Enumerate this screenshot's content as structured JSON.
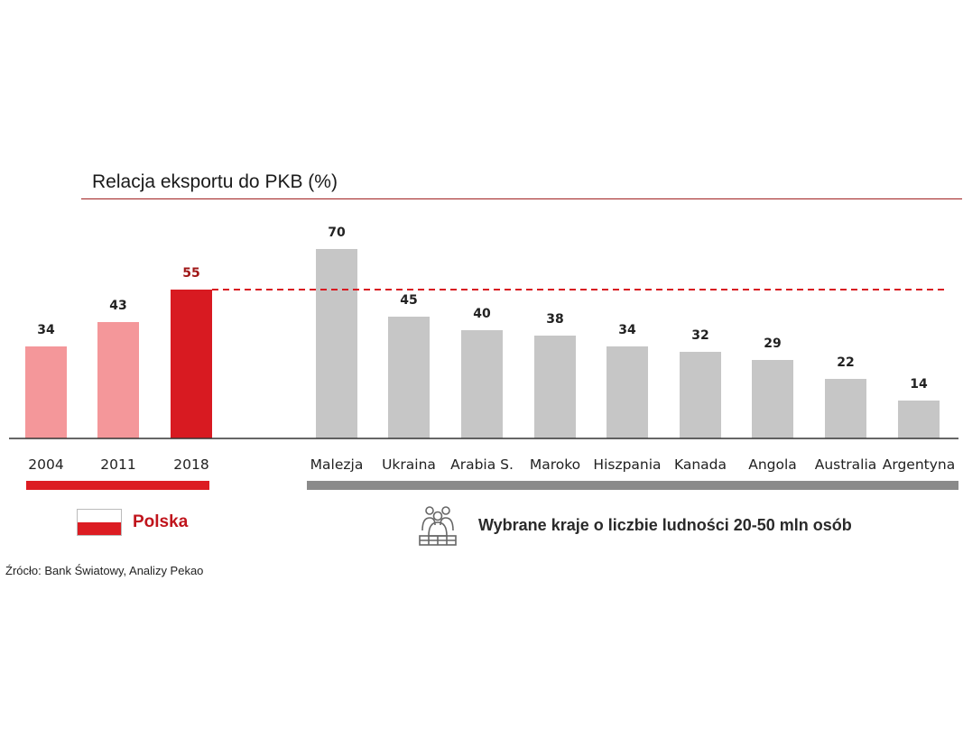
{
  "chart_data": {
    "type": "bar",
    "title": "Relacja eksportu do PKB (%)",
    "groups": [
      {
        "name": "Polska",
        "categories": [
          "2004",
          "2011",
          "2018"
        ],
        "values": [
          34,
          43,
          55
        ],
        "colors": [
          "#f4979a",
          "#f4979a",
          "#d81a21"
        ]
      },
      {
        "name": "Wybrane kraje o liczbie ludności 20-50 mln osób",
        "categories": [
          "Malezja",
          "Ukraina",
          "Arabia S.",
          "Maroko",
          "Hiszpania",
          "Kanada",
          "Angola",
          "Australia",
          "Argentyna"
        ],
        "values": [
          70,
          45,
          40,
          38,
          34,
          32,
          29,
          22,
          14
        ],
        "color": "#c6c6c6"
      }
    ],
    "reference_line": {
      "value": 55,
      "style": "dashed",
      "color": "#d81a21"
    },
    "ylim": [
      0,
      70
    ],
    "grid": false,
    "legend": "bottom"
  },
  "colors": {
    "polska_group_bar": "#dc1c22",
    "countries_group_bar": "#8a8a8a",
    "title_rule": "#a02020"
  },
  "legend": {
    "polska_label": "Polska",
    "polska_icon": "polish-flag-icon",
    "countries_label": "Wybrane kraje o liczbie ludności 20-50 mln osób",
    "countries_icon": "people-group-icon"
  },
  "source": "Źrócło: Bank Światowy, Analizy Pekao"
}
